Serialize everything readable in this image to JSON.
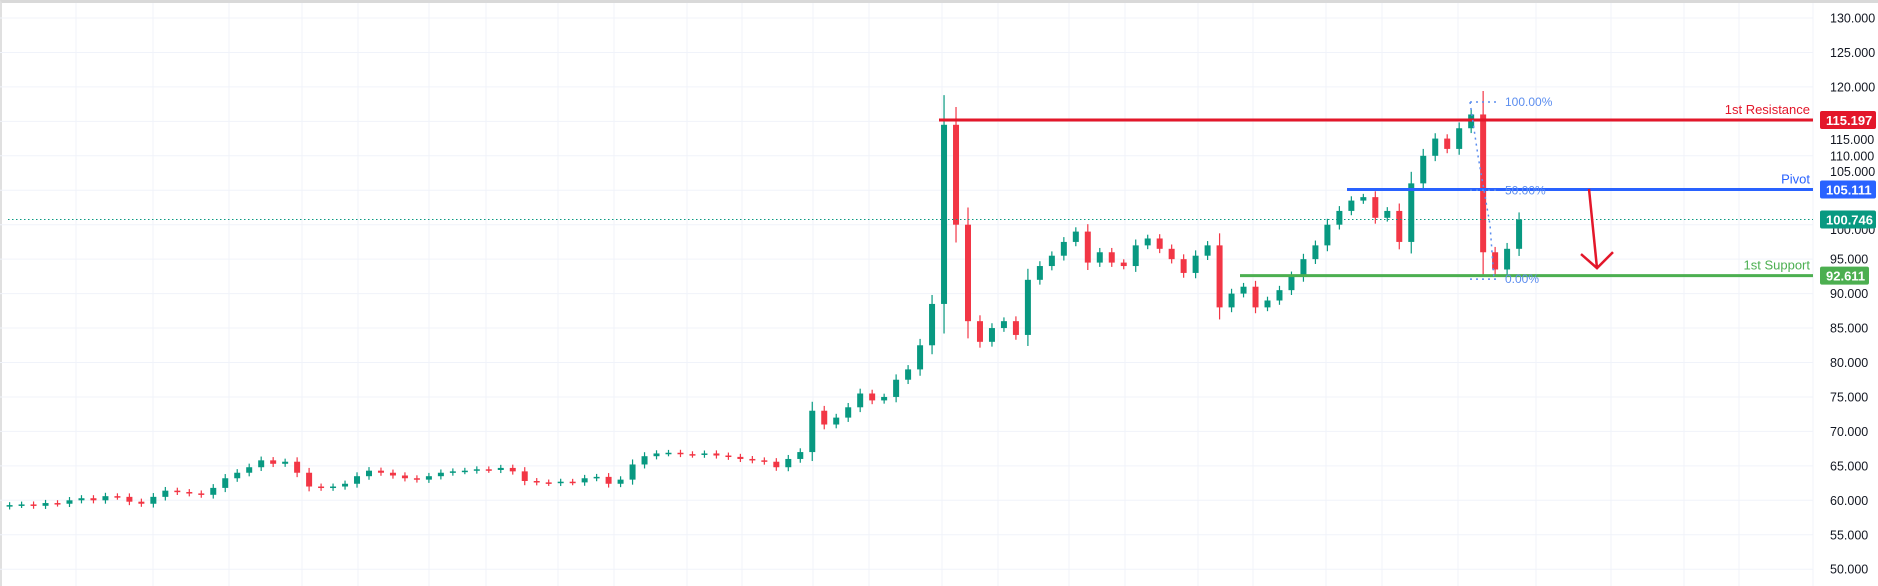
{
  "chart_data": {
    "type": "candlestick",
    "ylim": [
      48,
      131
    ],
    "y_ticks": [
      "130.000",
      "125.000",
      "120.000",
      "115.000",
      "110.000",
      "105.000",
      "100.000",
      "95.000",
      "90.000",
      "85.000",
      "80.000",
      "75.000",
      "70.000",
      "65.000",
      "60.000",
      "55.000",
      "50.000"
    ],
    "y_tick_values": [
      130,
      125,
      120,
      115,
      110,
      105,
      100,
      95,
      90,
      85,
      80,
      75,
      70,
      65,
      60,
      55,
      50
    ],
    "grid": true,
    "colors": {
      "up": "#089981",
      "down": "#f23645",
      "grid": "#f0f3fa"
    },
    "closes": [
      59.3,
      59.4,
      59.2,
      59.6,
      59.5,
      60.0,
      60.3,
      60.0,
      60.6,
      60.5,
      59.8,
      59.5,
      60.5,
      61.4,
      61.2,
      61.0,
      60.8,
      61.8,
      63.2,
      64.0,
      64.8,
      65.8,
      65.3,
      65.6,
      64.0,
      62.0,
      61.8,
      62.0,
      62.4,
      63.5,
      64.3,
      64.0,
      63.6,
      63.2,
      63.0,
      63.5,
      64.0,
      64.2,
      64.3,
      64.5,
      64.4,
      64.7,
      64.2,
      62.8,
      62.6,
      62.5,
      62.7,
      62.6,
      63.2,
      63.4,
      62.4,
      63.0,
      65.2,
      66.4,
      66.8,
      66.9,
      66.7,
      66.6,
      66.8,
      66.5,
      66.3,
      66.0,
      65.8,
      65.6,
      64.8,
      66.0,
      67.0,
      73.0,
      71.0,
      72.0,
      73.5,
      75.5,
      74.5,
      75.0,
      77.5,
      79.0,
      82.5,
      88.5,
      114.5,
      100,
      86,
      83,
      85,
      86,
      84,
      92,
      94,
      95.5,
      97.5,
      99,
      94.5,
      96,
      94.5,
      94,
      97,
      98,
      96.5,
      95,
      93,
      95.5,
      97,
      88,
      90,
      91,
      88,
      89,
      90.5,
      92.5,
      95,
      97,
      100,
      102,
      103.5,
      104,
      101,
      102,
      97.5,
      106,
      110,
      112.5,
      111,
      114,
      116,
      96,
      93.5,
      96.5,
      100.746
    ],
    "last_price": {
      "value": 100.746,
      "label": "100.746",
      "color": "#089981"
    },
    "levels": [
      {
        "name": "1st Resistance",
        "value": 115.197,
        "label": "115.197",
        "color": "#e3172a"
      },
      {
        "name": "Pivot",
        "value": 105.111,
        "label": "105.111",
        "color": "#2962ff"
      },
      {
        "name": "1st Support",
        "value": 92.611,
        "label": "92.611",
        "color": "#4caf50"
      }
    ],
    "fibonacci": {
      "color": "#5b8def",
      "levels": [
        {
          "label": "100.00%",
          "value": 117.8
        },
        {
          "label": "50.00%",
          "value": 105.0
        },
        {
          "label": "0.00%",
          "value": 92.1
        }
      ]
    },
    "annotation": {
      "type": "arrow-down",
      "color": "#e3172a",
      "from": 105.2,
      "to": 93.7
    }
  }
}
